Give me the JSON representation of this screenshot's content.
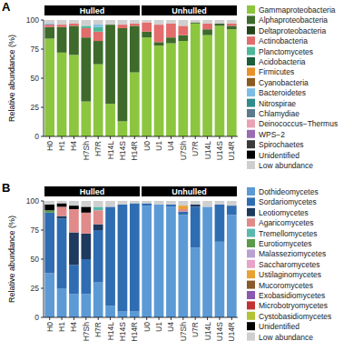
{
  "chart_data": [
    {
      "type": "bar",
      "panel": "A",
      "stacked": true,
      "grid": false,
      "legend": "right",
      "y_label": "Relative abundance (%)",
      "ylim": [
        0,
        100
      ],
      "yticks": [
        0,
        25,
        50,
        75,
        100
      ],
      "categories": [
        "H0",
        "H1",
        "H4",
        "H7Sh",
        "H7R",
        "H14L",
        "H14S",
        "H14R",
        "U0",
        "U1",
        "U4",
        "U7Sh",
        "U7R",
        "U14L",
        "U14S",
        "U14R"
      ],
      "groups": [
        {
          "name": "Hulled",
          "categories": [
            "H0",
            "H1",
            "H4",
            "H7Sh",
            "H7R",
            "H14L",
            "H14S",
            "H14R"
          ]
        },
        {
          "name": "Unhulled",
          "categories": [
            "U0",
            "U1",
            "U4",
            "U7Sh",
            "U7R",
            "U14L",
            "U14S",
            "U14R"
          ]
        }
      ],
      "series": [
        {
          "name": "Gammaproteobacteria",
          "color": "#8cc63f",
          "values": [
            84,
            72,
            70,
            30,
            62,
            28,
            13,
            55,
            85,
            78,
            80,
            82,
            97,
            87,
            95,
            92
          ]
        },
        {
          "name": "Alphaproteobacteria",
          "color": "#3e6b2b",
          "values": [
            10,
            22,
            25,
            55,
            20,
            68,
            80,
            40,
            5,
            3,
            5,
            5,
            1,
            5,
            2,
            3
          ]
        },
        {
          "name": "Deltaproteobacteria",
          "color": "#26441b",
          "values": [
            0,
            0,
            0,
            0,
            0,
            0,
            0,
            0,
            0,
            0,
            0,
            0,
            0,
            0,
            0,
            0
          ]
        },
        {
          "name": "Actinobacteria",
          "color": "#e36c6c",
          "values": [
            2,
            2,
            2,
            8,
            8,
            0,
            3,
            2,
            8,
            15,
            12,
            8,
            0,
            5,
            0,
            2
          ]
        },
        {
          "name": "Planctomycetes",
          "color": "#4fb89a",
          "values": [
            0,
            0,
            0,
            2,
            4,
            0,
            0,
            0,
            0,
            0,
            0,
            0,
            0,
            0,
            0,
            0
          ]
        },
        {
          "name": "Acidobacteria",
          "color": "#1d5e3b",
          "values": [
            0,
            0,
            0,
            0,
            0,
            0,
            0,
            0,
            0,
            0,
            0,
            0,
            0,
            0,
            0,
            0
          ]
        },
        {
          "name": "Firmicutes",
          "color": "#e8912b",
          "values": [
            0,
            0,
            0,
            0,
            0,
            0,
            0,
            0,
            0,
            0,
            0,
            0,
            0,
            0,
            0,
            0
          ]
        },
        {
          "name": "Cyanobacteria",
          "color": "#8a5a1e",
          "values": [
            0,
            0,
            0,
            0,
            0,
            0,
            0,
            0,
            0,
            0,
            0,
            0,
            0,
            0,
            0,
            0
          ]
        },
        {
          "name": "Bacteroidetes",
          "color": "#7cbde6",
          "values": [
            1,
            0,
            0,
            0,
            2,
            0,
            0,
            0,
            0,
            0,
            0,
            0,
            0,
            0,
            0,
            0
          ]
        },
        {
          "name": "Nitrospirae",
          "color": "#2f8c8c",
          "values": [
            0,
            0,
            0,
            0,
            0,
            0,
            0,
            0,
            0,
            0,
            0,
            0,
            0,
            0,
            0,
            0
          ]
        },
        {
          "name": "Chlamydiae",
          "color": "#5b7b8c",
          "values": [
            0,
            0,
            0,
            0,
            0,
            0,
            0,
            0,
            0,
            0,
            0,
            0,
            0,
            0,
            0,
            0
          ]
        },
        {
          "name": "Deinococcus−Thermus",
          "color": "#e8a3b5",
          "values": [
            0,
            0,
            0,
            0,
            0,
            0,
            0,
            0,
            0,
            0,
            0,
            0,
            0,
            0,
            0,
            0
          ]
        },
        {
          "name": "WPS−2",
          "color": "#9a6bb2",
          "values": [
            0,
            0,
            0,
            0,
            0,
            0,
            0,
            0,
            0,
            0,
            0,
            0,
            0,
            0,
            0,
            0
          ]
        },
        {
          "name": "Spirochaetes",
          "color": "#3a3a3a",
          "values": [
            0,
            0,
            0,
            0,
            0,
            0,
            0,
            0,
            0,
            0,
            0,
            0,
            0,
            0,
            0,
            0
          ]
        },
        {
          "name": "Unidentified",
          "color": "#000000",
          "values": [
            0,
            0,
            0,
            0,
            0,
            0,
            0,
            0,
            0,
            0,
            0,
            0,
            0,
            0,
            0,
            0
          ]
        },
        {
          "name": "Low abundance",
          "color": "#cfcfcf",
          "values": [
            3,
            4,
            3,
            5,
            4,
            4,
            4,
            3,
            2,
            4,
            3,
            5,
            2,
            3,
            3,
            3
          ]
        }
      ]
    },
    {
      "type": "bar",
      "panel": "B",
      "stacked": true,
      "grid": false,
      "legend": "right",
      "y_label": "Relative abundance (%)",
      "ylim": [
        0,
        100
      ],
      "yticks": [
        0,
        25,
        50,
        75,
        100
      ],
      "categories": [
        "H0",
        "H1",
        "H4",
        "H7Sh",
        "H7R",
        "H14L",
        "H14S",
        "H14R",
        "U0",
        "U1",
        "U4",
        "U7Sh",
        "U7R",
        "U14L",
        "U14S",
        "U14R"
      ],
      "groups": [
        {
          "name": "Hulled",
          "categories": [
            "H0",
            "H1",
            "H4",
            "H7Sh",
            "H7R",
            "H14L",
            "H14S",
            "H14R"
          ]
        },
        {
          "name": "Unhulled",
          "categories": [
            "U0",
            "U1",
            "U4",
            "U7Sh",
            "U7R",
            "U14L",
            "U14S",
            "U14R"
          ]
        }
      ],
      "series": [
        {
          "name": "Dothideomycetes",
          "color": "#5c9ad6",
          "values": [
            38,
            25,
            20,
            20,
            30,
            10,
            5,
            5,
            96,
            97,
            95,
            88,
            60,
            95,
            65,
            88
          ]
        },
        {
          "name": "Sordariomycetes",
          "color": "#2f6db3",
          "values": [
            52,
            60,
            25,
            30,
            45,
            85,
            92,
            93,
            2,
            0,
            2,
            3,
            35,
            0,
            32,
            8
          ]
        },
        {
          "name": "Leotiomycetes",
          "color": "#1e3a5e",
          "values": [
            0,
            2,
            28,
            22,
            5,
            0,
            0,
            0,
            0,
            0,
            0,
            0,
            2,
            0,
            0,
            0
          ]
        },
        {
          "name": "Agaricomycetes",
          "color": "#e08a8a",
          "values": [
            0,
            8,
            20,
            18,
            12,
            0,
            0,
            0,
            0,
            0,
            0,
            2,
            0,
            0,
            0,
            0
          ]
        },
        {
          "name": "Tremellomycetes",
          "color": "#5bb8ae",
          "values": [
            0,
            0,
            0,
            0,
            3,
            0,
            0,
            0,
            0,
            0,
            0,
            0,
            0,
            0,
            0,
            0
          ]
        },
        {
          "name": "Eurotiomycetes",
          "color": "#5a9a48",
          "values": [
            2,
            0,
            0,
            0,
            0,
            0,
            0,
            0,
            0,
            0,
            0,
            0,
            0,
            0,
            0,
            0
          ]
        },
        {
          "name": "Malasseziomycetes",
          "color": "#b9a2d2",
          "values": [
            0,
            0,
            0,
            0,
            0,
            0,
            0,
            0,
            0,
            0,
            0,
            0,
            0,
            0,
            0,
            0
          ]
        },
        {
          "name": "Saccharomycetes",
          "color": "#e8a2c8",
          "values": [
            0,
            0,
            0,
            0,
            0,
            0,
            0,
            0,
            0,
            0,
            0,
            0,
            0,
            0,
            0,
            0
          ]
        },
        {
          "name": "Ustilaginomycetes",
          "color": "#e8a232",
          "values": [
            0,
            0,
            0,
            0,
            0,
            0,
            0,
            0,
            0,
            0,
            0,
            3,
            0,
            0,
            0,
            0
          ]
        },
        {
          "name": "Mucoromycetes",
          "color": "#8b5a2b",
          "values": [
            0,
            0,
            0,
            0,
            0,
            0,
            0,
            0,
            0,
            0,
            0,
            0,
            0,
            0,
            0,
            0
          ]
        },
        {
          "name": "Exobasidiomycetes",
          "color": "#8a5ab2",
          "values": [
            0,
            0,
            0,
            0,
            0,
            0,
            0,
            0,
            0,
            0,
            0,
            0,
            0,
            0,
            0,
            0
          ]
        },
        {
          "name": "Microbotryomycetes",
          "color": "#c23232",
          "values": [
            0,
            0,
            0,
            0,
            0,
            0,
            0,
            0,
            0,
            0,
            0,
            0,
            0,
            0,
            0,
            0
          ]
        },
        {
          "name": "Cystobasidiomycetes",
          "color": "#b3c236",
          "values": [
            0,
            0,
            0,
            0,
            0,
            0,
            0,
            0,
            0,
            0,
            0,
            0,
            0,
            0,
            0,
            0
          ]
        },
        {
          "name": "Unidentified",
          "color": "#000000",
          "values": [
            5,
            3,
            3,
            5,
            0,
            0,
            0,
            0,
            0,
            0,
            0,
            0,
            0,
            0,
            0,
            0
          ]
        },
        {
          "name": "Low abundance",
          "color": "#cfcfcf",
          "values": [
            3,
            2,
            4,
            5,
            5,
            5,
            3,
            2,
            2,
            3,
            3,
            4,
            3,
            5,
            3,
            4
          ]
        }
      ]
    }
  ]
}
